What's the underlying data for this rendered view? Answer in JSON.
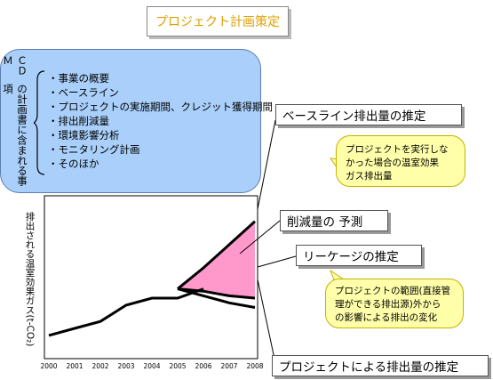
{
  "title": "プロジェクト計画策定",
  "vertical_label": "の計画書に含まれる事項",
  "vertical_label_prefix": "ＣＤＭ",
  "items": [
    "事業の概要",
    "ベースライン",
    "プロジェクトの実施期間、クレジット獲得期間",
    "排出削減量",
    "環境影響分析",
    "モニタリング計画",
    "そのほか"
  ],
  "callouts": {
    "baseline": "ベースライン排出量の推定",
    "reduction": "削減量の 予測",
    "leakage": "リーケージの推定",
    "project": "プロジェクトによる排出量の推定"
  },
  "notes": {
    "baseline": [
      "プロジェクトを実行しな",
      "かった場合の温室効果",
      "ガス排出量"
    ],
    "leakage": [
      "プロジェクトの範囲(直接管",
      "理ができる排出源)外から",
      "の影響による排出の変化"
    ]
  },
  "chart_data": {
    "type": "line",
    "ylabel": "排出される温室効果ガス(t-CO₂)",
    "x": [
      "2000",
      "2001",
      "2002",
      "2003",
      "2004",
      "2005",
      "2006",
      "2007",
      "2008"
    ],
    "series": [
      {
        "values": [
          1.0,
          1.3,
          1.6,
          2.3,
          2.6,
          2.6,
          3.0,
          null,
          null
        ]
      },
      {
        "values": [
          null,
          null,
          null,
          null,
          null,
          3.0,
          3.9,
          4.9,
          5.9
        ]
      },
      {
        "values": [
          null,
          null,
          null,
          null,
          null,
          3.0,
          2.9,
          2.7,
          2.6
        ]
      },
      {
        "values": [
          null,
          null,
          null,
          null,
          null,
          3.0,
          2.7,
          2.4,
          2.2
        ]
      }
    ],
    "ylim": [
      0,
      7
    ],
    "colors": {
      "shade": "#ff99cc",
      "line": "#000000"
    }
  }
}
